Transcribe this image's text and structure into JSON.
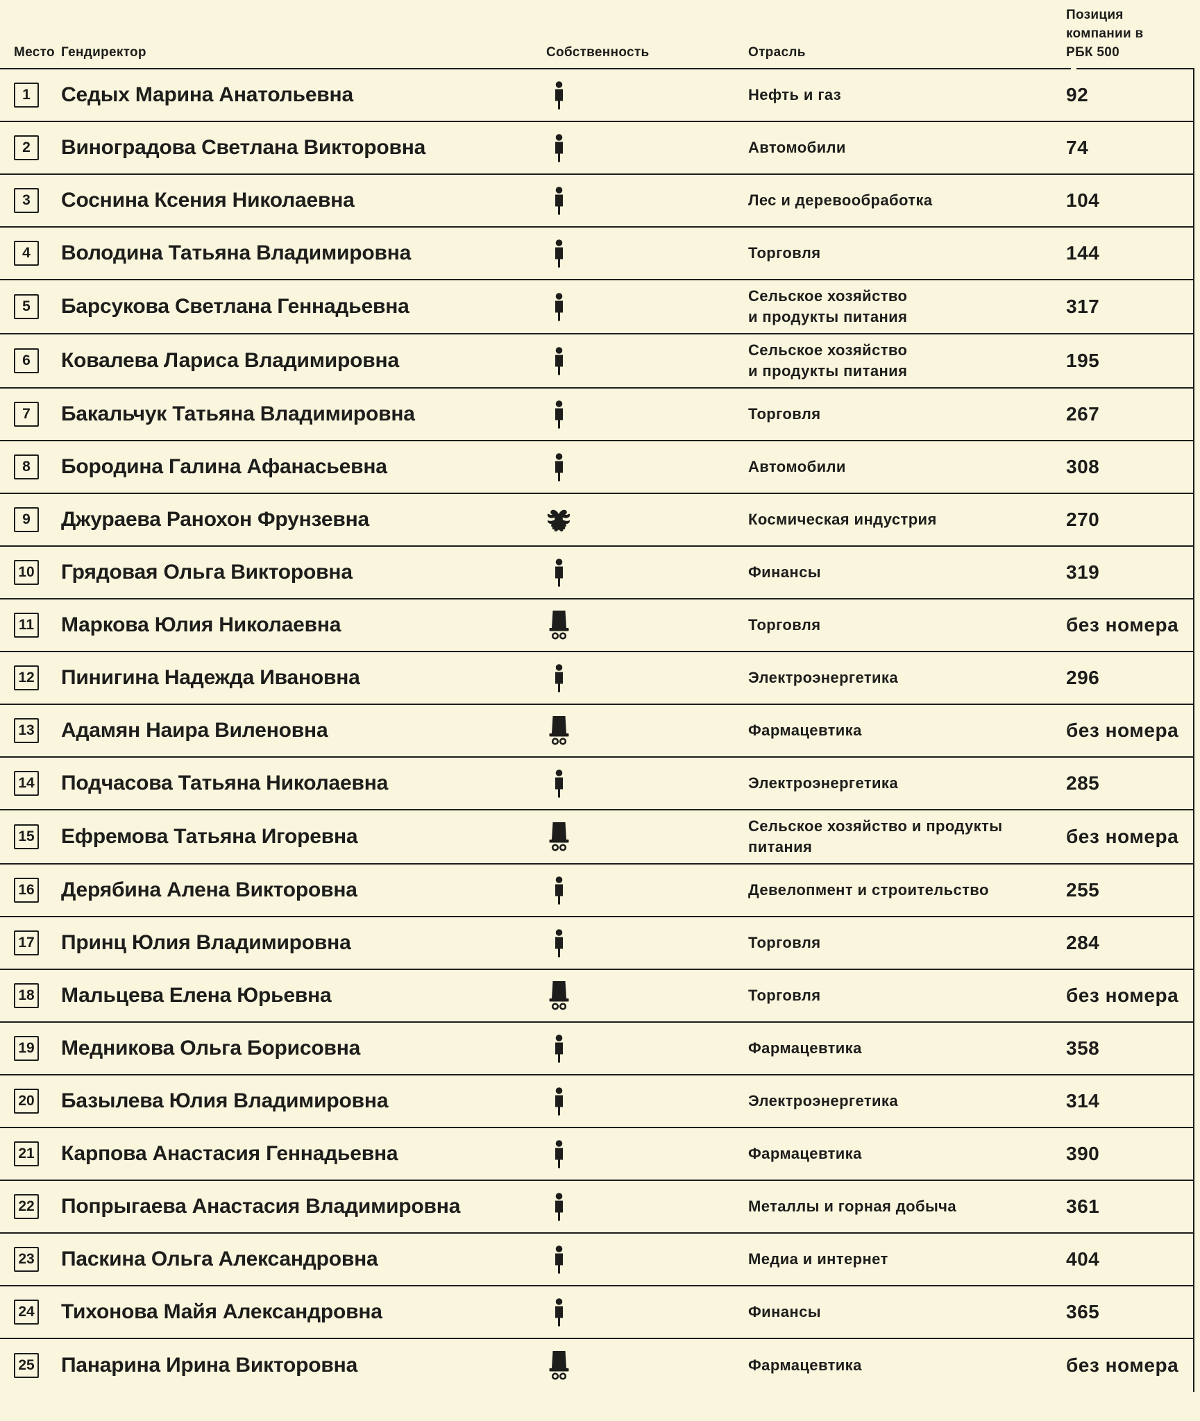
{
  "colors": {
    "background": "#faf6de",
    "text": "#1d1d1b",
    "line": "#1d1d1b"
  },
  "table": {
    "headers": {
      "rank": "Место",
      "ceo": "Гендиректор",
      "ownership": "Собственность",
      "industry": "Отрасль",
      "position": "Позиция компании в РБК 500"
    },
    "ownership_icons": {
      "individual": "person-icon",
      "state": "double-headed-eagle-icon",
      "manager": "manager-chair-icon"
    },
    "rows": [
      {
        "rank": "1",
        "ceo": "Седых Марина Анатольевна",
        "ownership": "individual",
        "industry": "Нефть и газ",
        "position": "92"
      },
      {
        "rank": "2",
        "ceo": "Виноградова Светлана Викторовна",
        "ownership": "individual",
        "industry": "Автомобили",
        "position": "74"
      },
      {
        "rank": "3",
        "ceo": "Соснина Ксения Николаевна",
        "ownership": "individual",
        "industry": "Лес и деревообработка",
        "position": "104"
      },
      {
        "rank": "4",
        "ceo": "Володина Татьяна Владимировна",
        "ownership": "individual",
        "industry": "Торговля",
        "position": "144"
      },
      {
        "rank": "5",
        "ceo": "Барсукова Светлана Геннадьевна",
        "ownership": "individual",
        "industry": "Сельское хозяйство\nи продукты питания",
        "position": "317"
      },
      {
        "rank": "6",
        "ceo": "Ковалева Лариса Владимировна",
        "ownership": "individual",
        "industry": "Сельское хозяйство\nи продукты питания",
        "position": "195"
      },
      {
        "rank": "7",
        "ceo": "Бакальчук Татьяна Владимировна",
        "ownership": "individual",
        "industry": "Торговля",
        "position": "267"
      },
      {
        "rank": "8",
        "ceo": "Бородина Галина Афанасьевна",
        "ownership": "individual",
        "industry": "Автомобили",
        "position": "308"
      },
      {
        "rank": "9",
        "ceo": "Джураева Ранохон Фрунзевна",
        "ownership": "state",
        "industry": "Космическая индустрия",
        "position": "270"
      },
      {
        "rank": "10",
        "ceo": "Грядовая Ольга Викторовна",
        "ownership": "individual",
        "industry": "Финансы",
        "position": "319"
      },
      {
        "rank": "11",
        "ceo": "Маркова Юлия Николаевна",
        "ownership": "manager",
        "industry": "Торговля",
        "position": "без номера"
      },
      {
        "rank": "12",
        "ceo": "Пинигина Надежда Ивановна",
        "ownership": "individual",
        "industry": "Электроэнергетика",
        "position": "296"
      },
      {
        "rank": "13",
        "ceo": "Адамян Наира Виленовна",
        "ownership": "manager",
        "industry": "Фармацевтика",
        "position": "без номера"
      },
      {
        "rank": "14",
        "ceo": "Подчасова Татьяна Николаевна",
        "ownership": "individual",
        "industry": "Электроэнергетика",
        "position": "285"
      },
      {
        "rank": "15",
        "ceo": "Ефремова Татьяна Игоревна",
        "ownership": "manager",
        "industry": "Сельское хозяйство и продукты\nпитания",
        "position": "без номера"
      },
      {
        "rank": "16",
        "ceo": "Дерябина Алена Викторовна",
        "ownership": "individual",
        "industry": "Девелопмент и строительство",
        "position": "255"
      },
      {
        "rank": "17",
        "ceo": "Принц Юлия Владимировна",
        "ownership": "individual",
        "industry": "Торговля",
        "position": "284"
      },
      {
        "rank": "18",
        "ceo": "Мальцева Елена Юрьевна",
        "ownership": "manager",
        "industry": "Торговля",
        "position": "без номера"
      },
      {
        "rank": "19",
        "ceo": "Медникова Ольга Борисовна",
        "ownership": "individual",
        "industry": "Фармацевтика",
        "position": "358"
      },
      {
        "rank": "20",
        "ceo": "Базылева Юлия Владимировна",
        "ownership": "individual",
        "industry": "Электроэнергетика",
        "position": "314"
      },
      {
        "rank": "21",
        "ceo": "Карпова Анастасия Геннадьевна",
        "ownership": "individual",
        "industry": "Фармацевтика",
        "position": "390"
      },
      {
        "rank": "22",
        "ceo": "Попрыгаева Анастасия Владимировна",
        "ownership": "individual",
        "industry": "Металлы и горная добыча",
        "position": "361"
      },
      {
        "rank": "23",
        "ceo": "Паскина Ольга Александровна",
        "ownership": "individual",
        "industry": "Медиа и интернет",
        "position": "404"
      },
      {
        "rank": "24",
        "ceo": "Тихонова Майя Александровна",
        "ownership": "individual",
        "industry": "Финансы",
        "position": "365"
      },
      {
        "rank": "25",
        "ceo": "Панарина Ирина Викторовна",
        "ownership": "manager",
        "industry": "Фармацевтика",
        "position": "без номера"
      }
    ]
  }
}
